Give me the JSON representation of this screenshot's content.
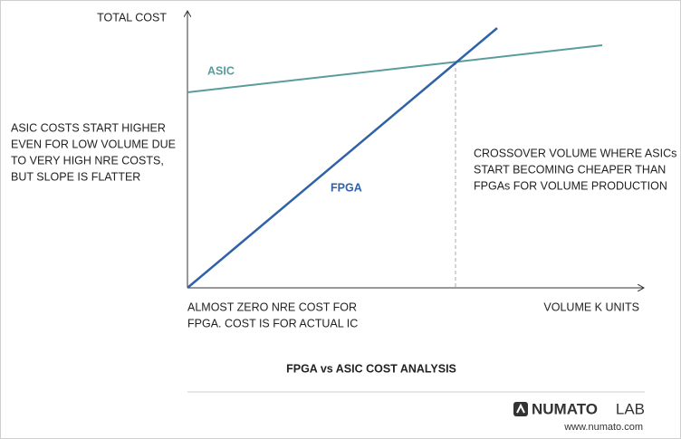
{
  "diagram": {
    "y_axis_label": "TOTAL COST",
    "x_axis_label": "VOLUME K UNITS",
    "lines": [
      {
        "label": "ASIC"
      },
      {
        "label": "FPGA"
      }
    ],
    "asic_note": [
      "ASIC COSTS START HIGHER",
      "EVEN FOR LOW VOLUME DUE",
      "TO VERY HIGH NRE COSTS,",
      "BUT SLOPE IS FLATTER"
    ],
    "crossover_note": [
      "CROSSOVER VOLUME WHERE ASICs",
      "START BECOMING CHEAPER THAN",
      "FPGAs FOR VOLUME PRODUCTION"
    ],
    "fpga_note": [
      "ALMOST ZERO NRE COST FOR",
      "FPGA. COST IS FOR ACTUAL IC"
    ],
    "title": "FPGA vs ASIC COST ANALYSIS",
    "logo": {
      "brand": "NUMATO",
      "suffix": "LAB",
      "url": "www.numato.com"
    }
  }
}
